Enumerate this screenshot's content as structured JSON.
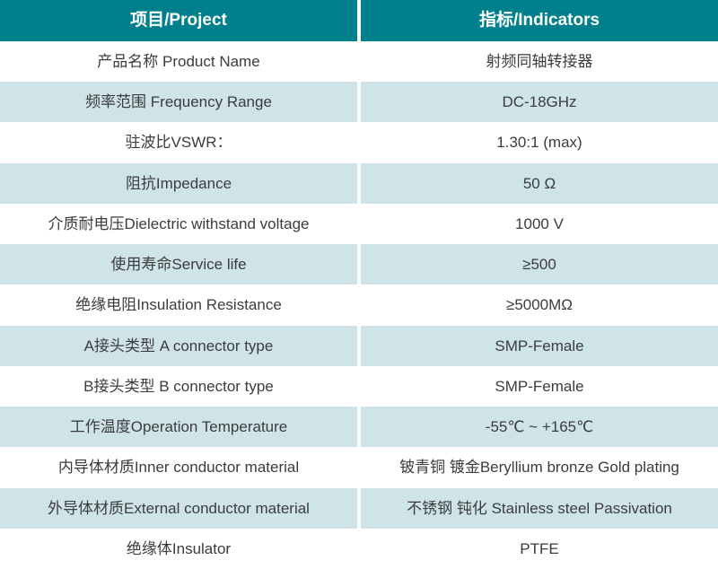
{
  "table": {
    "header": {
      "col1": "项目/Project",
      "col2": "指标/Indicators"
    },
    "rows": [
      {
        "project": "产品名称 Product Name",
        "indicator": "射频同轴转接器"
      },
      {
        "project": "频率范围 Frequency Range",
        "indicator": "DC-18GHz"
      },
      {
        "project": "驻波比VSWR：",
        "indicator": "1.30:1 (max)"
      },
      {
        "project": "阻抗Impedance",
        "indicator": "50 Ω"
      },
      {
        "project": "介质耐电压Dielectric withstand voltage",
        "indicator": "1000 V"
      },
      {
        "project": "使用寿命Service life",
        "indicator": "≥500"
      },
      {
        "project": "绝缘电阻Insulation Resistance",
        "indicator": "≥5000MΩ"
      },
      {
        "project": "A接头类型 A connector type",
        "indicator": "SMP-Female"
      },
      {
        "project": "B接头类型 B connector type",
        "indicator": "SMP-Female"
      },
      {
        "project": "工作温度Operation Temperature",
        "indicator": "-55℃ ~ +165℃"
      },
      {
        "project": "内导体材质Inner conductor material",
        "indicator": "铍青铜 镀金Beryllium bronze Gold plating"
      },
      {
        "project": "外导体材质External conductor material",
        "indicator": "不锈钢 钝化 Stainless steel Passivation"
      },
      {
        "project": "绝缘体Insulator",
        "indicator": "PTFE"
      }
    ]
  },
  "colors": {
    "header_bg": "#00808C",
    "header_text": "#FFFFFF",
    "row_bg": "#FFFFFF",
    "row_alt_bg": "#CEE4E8",
    "body_text": "#3C3C3C",
    "divider": "#FFFFFF"
  }
}
